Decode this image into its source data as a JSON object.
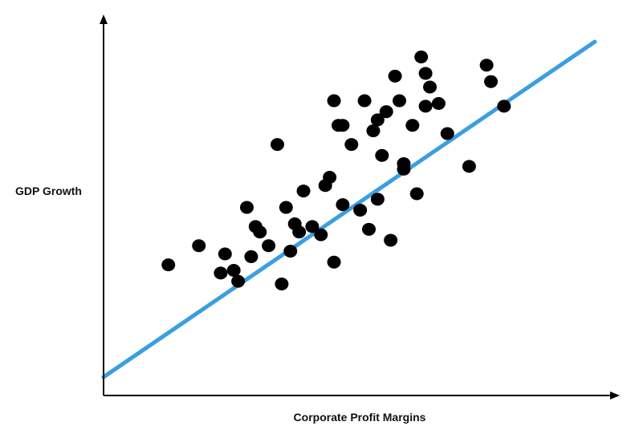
{
  "chart_data": {
    "type": "scatter",
    "title": "",
    "xlabel": "Corporate Profit Margins",
    "ylabel": "GDP Growth",
    "xlim": [
      0,
      100
    ],
    "ylim": [
      0,
      100
    ],
    "grid": false,
    "point_color": "#000000",
    "trendline": {
      "color": "#3a9fe0",
      "points": [
        [
          2,
          6
        ],
        [
          98,
          94
        ]
      ]
    },
    "points": [
      [
        11,
        24
      ],
      [
        18,
        31
      ],
      [
        23,
        21
      ],
      [
        24,
        28
      ],
      [
        26,
        22
      ],
      [
        27,
        18
      ],
      [
        29,
        45
      ],
      [
        30,
        27
      ],
      [
        31,
        38
      ],
      [
        32,
        36
      ],
      [
        34,
        31
      ],
      [
        36,
        68
      ],
      [
        37,
        17
      ],
      [
        38,
        45
      ],
      [
        39,
        29
      ],
      [
        40,
        39
      ],
      [
        41,
        36
      ],
      [
        42,
        51
      ],
      [
        44,
        38
      ],
      [
        46,
        35
      ],
      [
        47,
        53
      ],
      [
        48,
        56
      ],
      [
        49,
        25
      ],
      [
        49,
        84
      ],
      [
        50,
        75
      ],
      [
        51,
        75
      ],
      [
        51,
        46
      ],
      [
        53,
        68
      ],
      [
        55,
        44
      ],
      [
        56,
        84
      ],
      [
        57,
        37
      ],
      [
        58,
        73
      ],
      [
        59,
        48
      ],
      [
        59,
        77
      ],
      [
        60,
        64
      ],
      [
        61,
        80
      ],
      [
        62,
        33
      ],
      [
        63,
        93
      ],
      [
        64,
        84
      ],
      [
        65,
        59
      ],
      [
        65,
        61
      ],
      [
        67,
        75
      ],
      [
        68,
        50
      ],
      [
        69,
        100
      ],
      [
        70,
        94
      ],
      [
        70,
        82
      ],
      [
        71,
        89
      ],
      [
        73,
        83
      ],
      [
        75,
        72
      ],
      [
        80,
        60
      ],
      [
        84,
        97
      ],
      [
        85,
        91
      ],
      [
        88,
        82
      ]
    ]
  }
}
